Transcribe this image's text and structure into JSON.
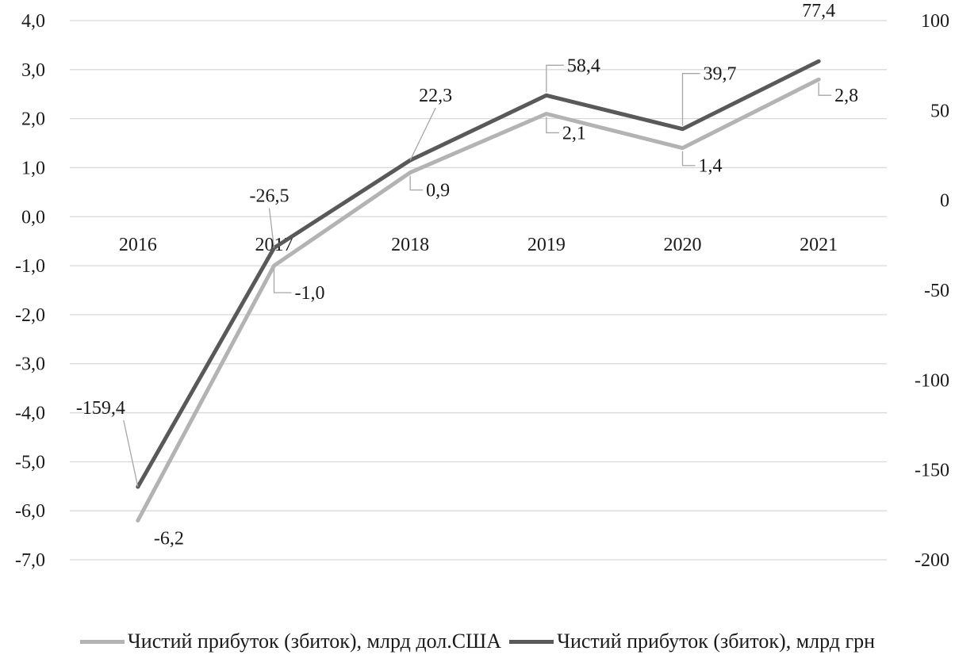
{
  "chart_data": {
    "type": "line",
    "title": "",
    "xlabel": "",
    "ylabel": "",
    "categories": [
      "2016",
      "2017",
      "2018",
      "2019",
      "2020",
      "2021"
    ],
    "y_left": {
      "range": [
        -7.0,
        4.0
      ],
      "ticks": [
        "4,0",
        "3,0",
        "2,0",
        "1,0",
        "0,0",
        "-1,0",
        "-2,0",
        "-3,0",
        "-4,0",
        "-5,0",
        "-6,0",
        "-7,0"
      ]
    },
    "y_right": {
      "range": [
        -200,
        100
      ],
      "ticks": [
        "100",
        "50",
        "0",
        "-50",
        "-100",
        "-150",
        "-200"
      ]
    },
    "grid": true,
    "legend_position": "bottom",
    "series": [
      {
        "name": "Чистий прибуток (збиток), млрд дол.США",
        "axis": "left",
        "color": "#b3b3b3",
        "values": [
          -6.2,
          -1.0,
          0.9,
          2.1,
          1.4,
          2.8
        ],
        "labels": [
          "-6,2",
          "-1,0",
          "0,9",
          "2,1",
          "1,4",
          "2,8"
        ]
      },
      {
        "name": "Чистий прибуток (збиток), млрд грн",
        "axis": "right",
        "color": "#595959",
        "values": [
          -159.4,
          -26.5,
          22.3,
          58.4,
          39.7,
          77.4
        ],
        "labels": [
          "-159,4",
          "-26,5",
          "22,3",
          "58,4",
          "39,7",
          "77,4"
        ]
      }
    ]
  }
}
